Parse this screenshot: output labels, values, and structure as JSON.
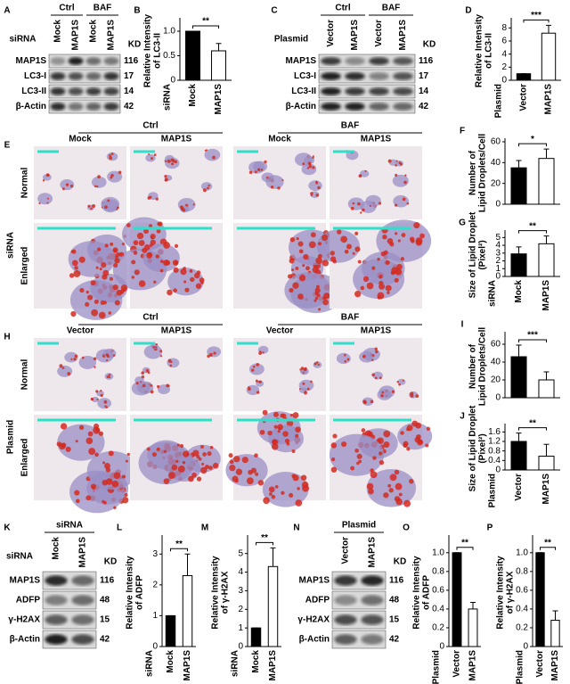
{
  "blots": [
    {
      "letter": "A",
      "side_label": "siRNA",
      "headers": [
        "Ctrl",
        "BAF"
      ],
      "lanes": [
        "Mock",
        "MAP1S",
        "Mock",
        "MAP1S"
      ],
      "kd_header": "KD",
      "rows": [
        {
          "name": "MAP1S",
          "kd": 116
        },
        {
          "name": "LC3-I",
          "kd": 17
        },
        {
          "name": "LC3-II",
          "kd": 14
        },
        {
          "name": "β-Actin",
          "kd": 42
        }
      ]
    },
    {
      "letter": "C",
      "side_label": "Plasmid",
      "headers": [
        "Ctrl",
        "BAF"
      ],
      "lanes": [
        "Vector",
        "MAP1S",
        "Vector",
        "MAP1S"
      ],
      "kd_header": "KD",
      "rows": [
        {
          "name": "MAP1S",
          "kd": 116
        },
        {
          "name": "LC3-I",
          "kd": 17
        },
        {
          "name": "LC3-II",
          "kd": 14
        },
        {
          "name": "β-Actin",
          "kd": 42
        }
      ]
    },
    {
      "letter": "K",
      "side_label": "siRNA",
      "headers": [
        "siRNA"
      ],
      "lanes": [
        "Mock",
        "MAP1S"
      ],
      "kd_header": "KD",
      "rows": [
        {
          "name": "MAP1S",
          "kd": 116
        },
        {
          "name": "ADFP",
          "kd": 48
        },
        {
          "name": "γ-H2AX",
          "kd": 15
        },
        {
          "name": "β-Actin",
          "kd": 42
        }
      ]
    },
    {
      "letter": "N",
      "headers": [
        "Plasmid"
      ],
      "lanes": [
        "Vector",
        "MAP1S"
      ],
      "kd_header": "KD",
      "rows": [
        {
          "name": "MAP1S",
          "kd": 116
        },
        {
          "name": "ADFP",
          "kd": 48
        },
        {
          "name": "γ-H2AX",
          "kd": 15
        },
        {
          "name": "β-Actin",
          "kd": 42
        }
      ]
    }
  ],
  "image_panels": [
    {
      "letter": "E",
      "side_label": "siRNA",
      "headers": [
        "Ctrl",
        "BAF"
      ],
      "columns": [
        "Mock",
        "MAP1S",
        "Mock",
        "MAP1S"
      ],
      "rows": [
        "Normal",
        "Enlarged"
      ]
    },
    {
      "letter": "H",
      "side_label": "Plasmid",
      "headers": [
        "Ctrl",
        "BAF"
      ],
      "columns": [
        "Vector",
        "MAP1S",
        "Vector",
        "MAP1S"
      ],
      "rows": [
        "Normal",
        "Enlarged"
      ]
    }
  ],
  "chart_data": [
    {
      "type": "bar",
      "letter": "B",
      "y_label": [
        "Relative Intensity",
        "of LC3-II"
      ],
      "group_label": "siRNA",
      "categories": [
        "Mock",
        "MAP1S"
      ],
      "values": [
        1.0,
        0.6
      ],
      "errors": [
        0,
        0.15
      ],
      "colors": [
        "#000000",
        "#ffffff"
      ],
      "significance": "**",
      "ylim": [
        0,
        1.2
      ],
      "yticks": [
        0,
        0.5,
        {
          "value": 1,
          "label": "1.0"
        }
      ]
    },
    {
      "type": "bar",
      "letter": "D",
      "y_label": [
        "Relative Intensity",
        "of LC3-II"
      ],
      "group_label": "Plasmid",
      "categories": [
        "Vector",
        "MAP1S"
      ],
      "values": [
        1,
        7.2
      ],
      "errors": [
        0,
        1.2
      ],
      "colors": [
        "#000000",
        "#ffffff"
      ],
      "significance": "***",
      "ylim": [
        0,
        9
      ],
      "yticks": [
        0,
        2,
        4,
        6,
        8
      ]
    },
    {
      "type": "bar",
      "letter": "F",
      "y_label": [
        "Number of",
        "Lipid Droplets/Cell"
      ],
      "categories": [
        null,
        null
      ],
      "values": [
        35,
        44
      ],
      "errors": [
        7,
        9
      ],
      "colors": [
        "#000000",
        "#ffffff"
      ],
      "significance": "*",
      "ylim": [
        0,
        60
      ],
      "yticks": [
        0,
        20,
        40,
        60
      ]
    },
    {
      "type": "bar",
      "letter": "G",
      "y_label": [
        "Size of Lipid Droplet",
        "(Pixel²)"
      ],
      "group_label": "siRNA",
      "categories": [
        "Mock",
        "MAP1S"
      ],
      "values": [
        2.9,
        4.2
      ],
      "errors": [
        0.9,
        1.0
      ],
      "colors": [
        "#000000",
        "#ffffff"
      ],
      "significance": "**",
      "ylim": [
        0,
        5.5
      ],
      "yticks": [
        0,
        1,
        2,
        3,
        4,
        5
      ]
    },
    {
      "type": "bar",
      "letter": "I",
      "y_label": [
        "Number of",
        "Lipid Droplets/Cell"
      ],
      "categories": [
        null,
        null
      ],
      "values": [
        46,
        20
      ],
      "errors": [
        13,
        9
      ],
      "colors": [
        "#000000",
        "#ffffff"
      ],
      "significance": "***",
      "ylim": [
        0,
        70
      ],
      "yticks": [
        0,
        20,
        40,
        60
      ]
    },
    {
      "type": "bar",
      "letter": "J",
      "y_label": [
        "Size of Lipid Droplet",
        "(Pixel²)"
      ],
      "group_label": "Plasmid",
      "categories": [
        "Vector",
        "MAP1S"
      ],
      "values": [
        1.2,
        0.58
      ],
      "errors": [
        0.35,
        0.5
      ],
      "colors": [
        "#000000",
        "#ffffff"
      ],
      "significance": "**",
      "ylim": [
        0,
        1.8
      ],
      "yticks": [
        0,
        0.4,
        0.8,
        1.2,
        1.6
      ]
    },
    {
      "type": "bar",
      "letter": "L",
      "y_label": [
        "Relative Intensity",
        "of ADFP"
      ],
      "group_label": "siRNA",
      "categories": [
        "Mock",
        "MAP1S"
      ],
      "values": [
        1,
        2.3
      ],
      "errors": [
        0,
        0.7
      ],
      "colors": [
        "#000000",
        "#ffffff"
      ],
      "significance": "**",
      "ylim": [
        0,
        3.5
      ],
      "yticks": [
        0,
        1,
        2,
        3
      ]
    },
    {
      "type": "bar",
      "letter": "M",
      "y_label": [
        "Relative Intensity",
        "of γ-H2AX"
      ],
      "group_label": "siRNA",
      "categories": [
        "Mock",
        "MAP1S"
      ],
      "values": [
        1,
        4.3
      ],
      "errors": [
        0,
        1.0
      ],
      "colors": [
        "#000000",
        "#ffffff"
      ],
      "significance": "**",
      "ylim": [
        0,
        5.8
      ],
      "yticks": [
        0,
        1,
        2,
        3,
        4,
        5
      ]
    },
    {
      "type": "bar",
      "letter": "O",
      "y_label": [
        "Relative Intensity",
        "of ADFP"
      ],
      "group_label": "Plasmid",
      "categories": [
        "Vector",
        "MAP1S"
      ],
      "values": [
        1.0,
        0.4
      ],
      "errors": [
        0,
        0.07
      ],
      "colors": [
        "#000000",
        "#ffffff"
      ],
      "significance": "**",
      "ylim": [
        0,
        1.15
      ],
      "yticks": [
        0,
        0.2,
        0.4,
        0.6,
        0.8,
        {
          "value": 1,
          "label": "1.0"
        }
      ]
    },
    {
      "type": "bar",
      "letter": "P",
      "y_label": [
        "Relative Intensity",
        "of γ-H2AX"
      ],
      "group_label": "Plasmid",
      "categories": [
        "Vector",
        "MAP1S"
      ],
      "values": [
        1.0,
        0.28
      ],
      "errors": [
        0,
        0.1
      ],
      "colors": [
        "#000000",
        "#ffffff"
      ],
      "significance": "**",
      "ylim": [
        0,
        1.15
      ],
      "yticks": [
        0,
        0.2,
        0.4,
        0.6,
        0.8,
        {
          "value": 1,
          "label": "1.0"
        }
      ]
    }
  ]
}
